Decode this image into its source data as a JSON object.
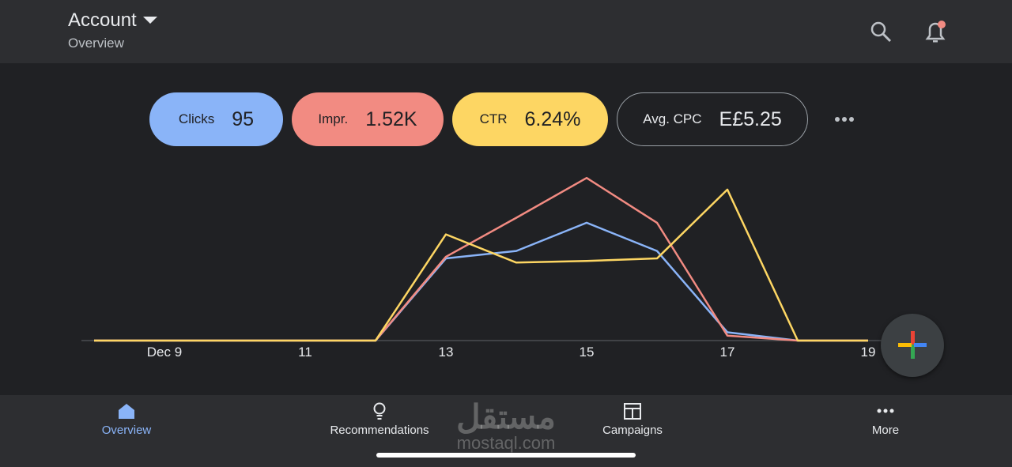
{
  "header": {
    "title": "Account",
    "subtitle": "Overview"
  },
  "chart_data": {
    "type": "line",
    "categories": [
      null,
      "Dec 9",
      null,
      "11",
      null,
      "13",
      null,
      "15",
      null,
      "17",
      null,
      "19"
    ],
    "ylim": [
      0,
      100
    ],
    "series": [
      {
        "name": "Clicks",
        "summary": "95",
        "color": "#8ab4f8",
        "values": [
          0,
          0,
          0,
          0,
          0,
          49.5,
          54,
          71,
          54,
          5,
          0,
          0
        ]
      },
      {
        "name": "Impr.",
        "summary": "1.52K",
        "color": "#f28b82",
        "values": [
          0,
          0,
          0,
          0,
          0,
          50.5,
          74,
          98,
          71,
          3,
          0,
          0
        ]
      },
      {
        "name": "CTR",
        "summary": "6.24%",
        "color": "#fdd663",
        "values": [
          0,
          0,
          0,
          0,
          0,
          64,
          47,
          48,
          49.5,
          91,
          0,
          0
        ]
      }
    ]
  },
  "extra_metric": {
    "label": "Avg. CPC",
    "value": "E£5.25"
  },
  "nav": [
    "Overview",
    "Recommendations",
    "Campaigns",
    "More"
  ],
  "watermark": {
    "arabic": "مستقل",
    "latin": "mostaql.com"
  }
}
